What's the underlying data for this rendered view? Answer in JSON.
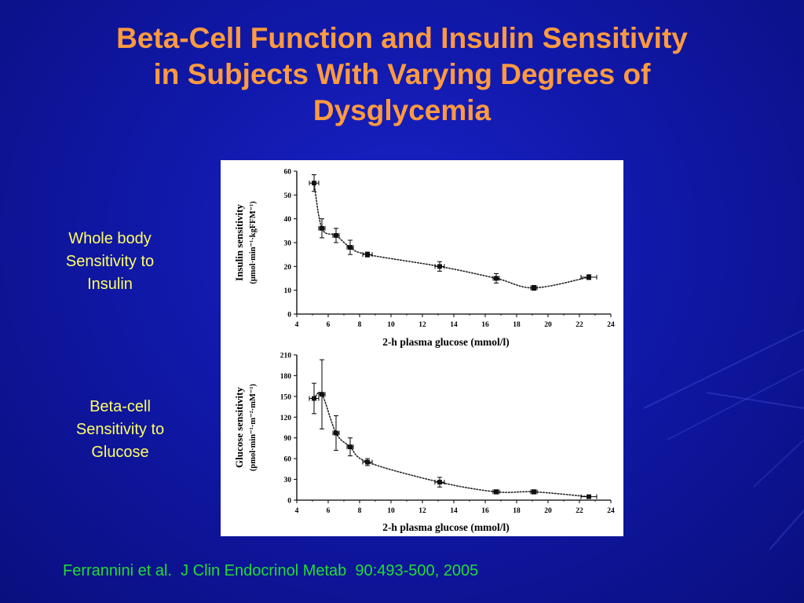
{
  "slide": {
    "title": "Beta-Cell Function and Insulin Sensitivity\nin Subjects With Varying Degrees of\nDysglycemia",
    "label_top": "Whole body\nSensitivity to\nInsulin",
    "label_bottom": "Beta-cell\nSensitivity to\nGlucose",
    "citation": "Ferrannini et al.  J Clin Endocrinol Metab  90:493-500, 2005"
  },
  "colors": {
    "background": "#1018a8",
    "title": "#ff9a40",
    "side_labels": "#ffff66",
    "citation": "#22dd33"
  },
  "chart_data": [
    {
      "type": "scatter",
      "line_style": "dotted",
      "xlabel": "2-h plasma glucose (mmol/l)",
      "ylabel_line1": "Insulin sensitivity",
      "ylabel_line2": "(μmol·min⁻¹·kgFFM⁻¹)",
      "xlim": [
        4,
        24
      ],
      "ylim": [
        0,
        60
      ],
      "xticks": [
        4,
        6,
        8,
        10,
        12,
        14,
        16,
        18,
        20,
        22,
        24
      ],
      "yticks": [
        0,
        10,
        20,
        30,
        40,
        50,
        60
      ],
      "points": [
        {
          "x": 5.1,
          "y": 55,
          "xerr": 0.3,
          "yerr": 3.5
        },
        {
          "x": 5.6,
          "y": 36,
          "xerr": 0.2,
          "yerr": 4
        },
        {
          "x": 6.5,
          "y": 33,
          "xerr": 0.2,
          "yerr": 3
        },
        {
          "x": 7.4,
          "y": 28,
          "xerr": 0.2,
          "yerr": 3
        },
        {
          "x": 8.5,
          "y": 25,
          "xerr": 0.3,
          "yerr": 1
        },
        {
          "x": 13.1,
          "y": 20,
          "xerr": 0.3,
          "yerr": 2
        },
        {
          "x": 16.7,
          "y": 15,
          "xerr": 0.2,
          "yerr": 2
        },
        {
          "x": 19.1,
          "y": 11,
          "xerr": 0.2,
          "yerr": 1
        },
        {
          "x": 22.6,
          "y": 15.5,
          "xerr": 0.5,
          "yerr": 1
        }
      ]
    },
    {
      "type": "scatter",
      "line_style": "dotted",
      "xlabel": "2-h plasma glucose (mmol/l)",
      "ylabel_line1": "Glucose sensitivity",
      "ylabel_line2": "(pmol·min⁻¹·m⁻²·mM⁻¹)",
      "xlim": [
        4,
        24
      ],
      "ylim": [
        0,
        210
      ],
      "xticks": [
        4,
        6,
        8,
        10,
        12,
        14,
        16,
        18,
        20,
        22,
        24
      ],
      "yticks": [
        0,
        30,
        60,
        90,
        120,
        150,
        180,
        210
      ],
      "points": [
        {
          "x": 5.1,
          "y": 147,
          "xerr": 0.3,
          "yerr": 22
        },
        {
          "x": 5.6,
          "y": 153,
          "xerr": 0.2,
          "yerr": 50
        },
        {
          "x": 6.5,
          "y": 97,
          "xerr": 0.2,
          "yerr": 25
        },
        {
          "x": 7.4,
          "y": 77,
          "xerr": 0.2,
          "yerr": 13
        },
        {
          "x": 8.5,
          "y": 55,
          "xerr": 0.3,
          "yerr": 5
        },
        {
          "x": 13.1,
          "y": 26,
          "xerr": 0.3,
          "yerr": 7
        },
        {
          "x": 16.7,
          "y": 12,
          "xerr": 0.2,
          "yerr": 3
        },
        {
          "x": 19.1,
          "y": 12,
          "xerr": 0.2,
          "yerr": 3
        },
        {
          "x": 22.6,
          "y": 5,
          "xerr": 0.5,
          "yerr": 1
        }
      ]
    }
  ]
}
